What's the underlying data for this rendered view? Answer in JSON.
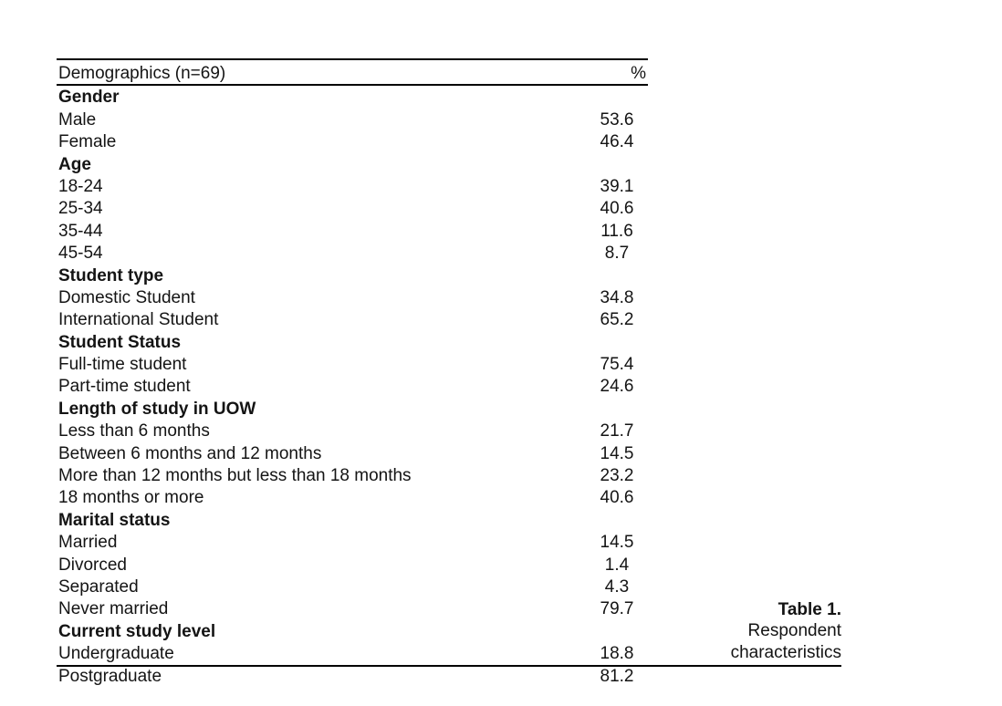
{
  "table": {
    "header": {
      "label": "Demographics (n=69)",
      "value_header": "%"
    },
    "rows": [
      {
        "label": "Gender",
        "value": "",
        "type": "section"
      },
      {
        "label": "Male",
        "value": "53.6",
        "type": "item"
      },
      {
        "label": "Female",
        "value": "46.4",
        "type": "item"
      },
      {
        "label": "Age",
        "value": "",
        "type": "section"
      },
      {
        "label": "18-24",
        "value": "39.1",
        "type": "item"
      },
      {
        "label": "25-34",
        "value": "40.6",
        "type": "item"
      },
      {
        "label": "35-44",
        "value": "11.6",
        "type": "item"
      },
      {
        "label": "45-54",
        "value": "8.7",
        "type": "item"
      },
      {
        "label": "Student type",
        "value": "",
        "type": "section"
      },
      {
        "label": "Domestic Student",
        "value": "34.8",
        "type": "item"
      },
      {
        "label": "International Student",
        "value": "65.2",
        "type": "item"
      },
      {
        "label": "Student Status",
        "value": "",
        "type": "section"
      },
      {
        "label": "Full-time student",
        "value": "75.4",
        "type": "item"
      },
      {
        "label": "Part-time student",
        "value": "24.6",
        "type": "item"
      },
      {
        "label": "Length of study in UOW",
        "value": "",
        "type": "section"
      },
      {
        "label": "Less than 6 months",
        "value": "21.7",
        "type": "item"
      },
      {
        "label": "Between 6 months and 12 months",
        "value": "14.5",
        "type": "item"
      },
      {
        "label": "More than 12 months but less than 18 months",
        "value": "23.2",
        "type": "item"
      },
      {
        "label": "18 months or more",
        "value": "40.6",
        "type": "item"
      },
      {
        "label": "Marital status",
        "value": "",
        "type": "section"
      },
      {
        "label": "Married",
        "value": "14.5",
        "type": "item"
      },
      {
        "label": "Divorced",
        "value": "1.4",
        "type": "item"
      },
      {
        "label": "Separated",
        "value": "4.3",
        "type": "item"
      },
      {
        "label": "Never married",
        "value": "79.7",
        "type": "item"
      },
      {
        "label": "Current study level",
        "value": "",
        "type": "section"
      },
      {
        "label": "Undergraduate",
        "value": "18.8",
        "type": "item"
      },
      {
        "label": "Postgraduate",
        "value": "81.2",
        "type": "item"
      }
    ]
  },
  "caption": {
    "title": "Table 1.",
    "line2": "Respondent",
    "line3": "characteristics"
  }
}
